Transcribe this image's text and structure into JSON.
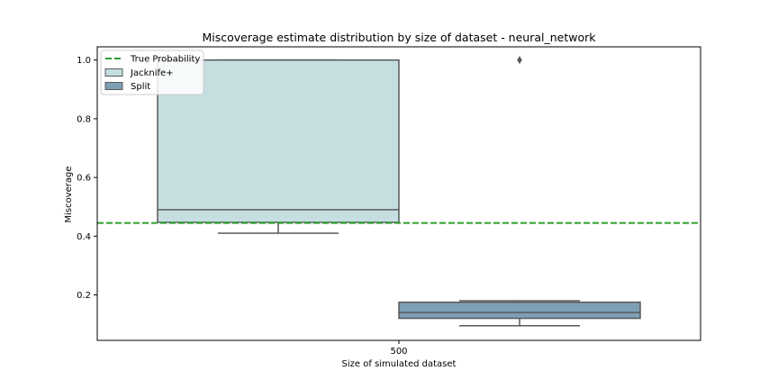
{
  "chart_data": {
    "type": "box",
    "title": "Miscoverage estimate distribution by size of dataset - neural_network",
    "xlabel": "Size of simulated dataset",
    "ylabel": "Miscoverage",
    "categories": [
      "500"
    ],
    "ylim": [
      0.045,
      1.045
    ],
    "yticks": [
      0.2,
      0.4,
      0.6,
      0.8,
      1.0
    ],
    "ytick_labels": [
      "0.2",
      "0.4",
      "0.6",
      "0.8",
      "1.0"
    ],
    "grid": false,
    "legend_position": "top-left",
    "reference_line": {
      "name": "True Probability",
      "value": 0.445,
      "color": "#2ca02c",
      "style": "dashed"
    },
    "series": [
      {
        "name": "Jacknife+",
        "color": "#c5dfe0",
        "boxes": [
          {
            "category": "500",
            "whisker_low": 0.41,
            "q1": 0.447,
            "median": 0.49,
            "q3": 1.0,
            "whisker_high": 1.0,
            "outliers": []
          }
        ]
      },
      {
        "name": "Split",
        "color": "#7d9fb6",
        "boxes": [
          {
            "category": "500",
            "whisker_low": 0.095,
            "q1": 0.12,
            "median": 0.14,
            "q3": 0.175,
            "whisker_high": 0.18,
            "outliers": [
              1.0
            ]
          }
        ]
      }
    ]
  }
}
